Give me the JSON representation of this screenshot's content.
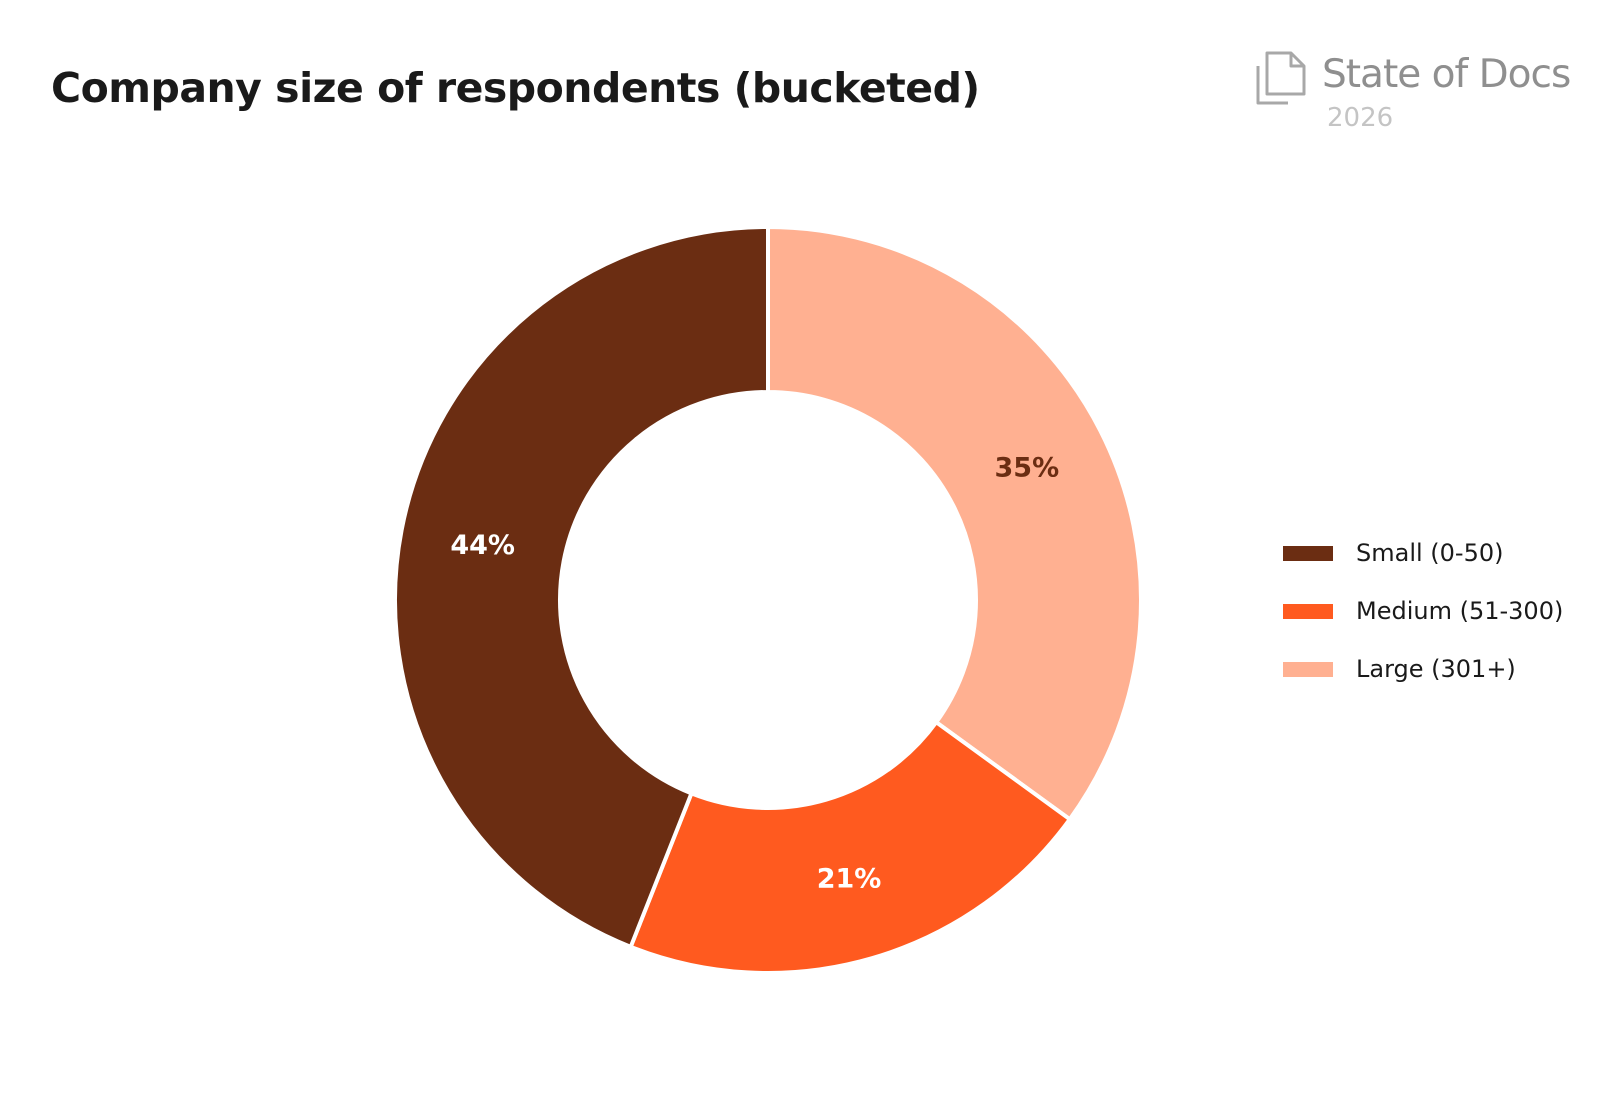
{
  "header": {
    "title": "Company size of respondents (bucketed)"
  },
  "brand": {
    "name": "State of Docs",
    "year": "2026",
    "icon": "document-stack-icon"
  },
  "chart_data": {
    "type": "pie",
    "title": "Company size of respondents (bucketed)",
    "donut": true,
    "legend_position": "right",
    "start_angle": "top, clockwise",
    "slices": [
      {
        "label": "Large (301+)",
        "value": 35,
        "display": "35%",
        "color": "#FFB091",
        "label_color": "#6B2D12"
      },
      {
        "label": "Medium (51-300)",
        "value": 21,
        "display": "21%",
        "color": "#FF5A1F",
        "label_color": "#FFFFFF"
      },
      {
        "label": "Small (0-50)",
        "value": 44,
        "display": "44%",
        "color": "#6B2D12",
        "label_color": "#FFFFFF"
      }
    ],
    "legend": [
      {
        "label": "Small (0-50)",
        "color": "#6B2D12"
      },
      {
        "label": "Medium (51-300)",
        "color": "#FF5A1F"
      },
      {
        "label": "Large (301+)",
        "color": "#FFB091"
      }
    ]
  }
}
